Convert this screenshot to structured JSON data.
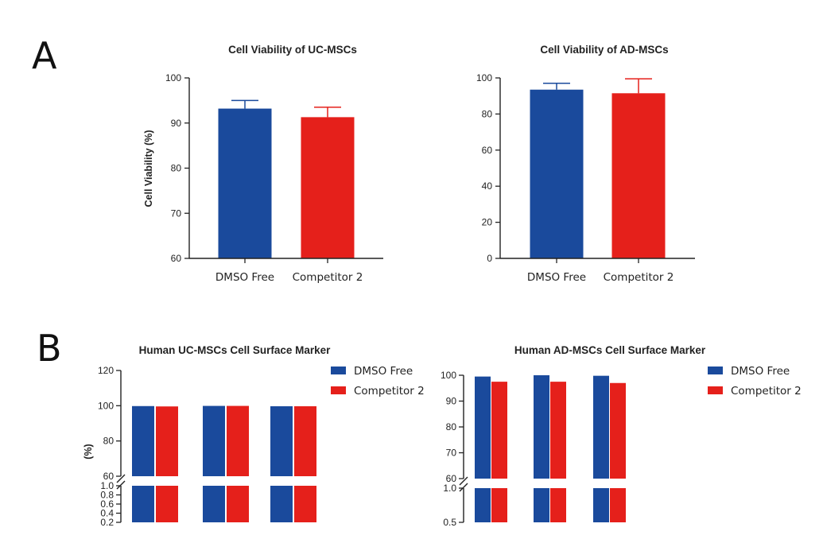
{
  "panels": {
    "a": "A",
    "b": "B"
  },
  "colors": {
    "dmso": "#1a4a9c",
    "competitor": "#e5201b",
    "axis": "#222222"
  },
  "chart_data": [
    {
      "type": "bar",
      "title": "Cell Viability of UC-MSCs",
      "ylabel": "Cell Viability (%)",
      "categories": [
        "DMSO Free",
        "Competitor 2"
      ],
      "values": [
        93.2,
        91.3
      ],
      "errors": [
        1.8,
        2.2
      ],
      "ylim": [
        60,
        100
      ],
      "yticks": [
        "60",
        "70",
        "80",
        "90",
        "100"
      ]
    },
    {
      "type": "bar",
      "title": "Cell Viability of AD-MSCs",
      "ylabel": "",
      "categories": [
        "DMSO Free",
        "Competitor 2"
      ],
      "values": [
        93.5,
        91.5
      ],
      "errors": [
        3.5,
        8.0
      ],
      "ylim": [
        0,
        100
      ],
      "yticks": [
        "0",
        "20",
        "40",
        "60",
        "80",
        "100"
      ]
    },
    {
      "type": "bar",
      "title": "Human UC-MSCs Cell Surface Marker",
      "ylabel": "(%)",
      "series": [
        {
          "name": "DMSO Free",
          "values": [
            99.8,
            99.9,
            99.7
          ]
        },
        {
          "name": "Competitor 2",
          "values": [
            99.6,
            99.9,
            99.7
          ]
        }
      ],
      "ylim_upper": [
        60,
        120
      ],
      "yticks_upper": [
        "60",
        "80",
        "100",
        "120"
      ],
      "ylim_lower": [
        0.2,
        1.0
      ],
      "yticks_lower": [
        "0.2",
        "0.4",
        "0.6",
        "0.8",
        "1.0"
      ],
      "axis_break": true,
      "legend": "top-right"
    },
    {
      "type": "bar",
      "title": "Human AD-MSCs Cell Surface Marker",
      "ylabel": "",
      "series": [
        {
          "name": "DMSO Free",
          "values": [
            99.5,
            100.0,
            99.8
          ]
        },
        {
          "name": "Competitor 2",
          "values": [
            97.5,
            97.5,
            97.0
          ]
        }
      ],
      "ylim_upper": [
        60,
        100
      ],
      "yticks_upper": [
        "60",
        "70",
        "80",
        "90",
        "100"
      ],
      "ylim_lower": [
        0.5,
        1.0
      ],
      "yticks_lower": [
        "0.5",
        "1.0"
      ],
      "axis_break": true,
      "legend": "top-right"
    }
  ]
}
